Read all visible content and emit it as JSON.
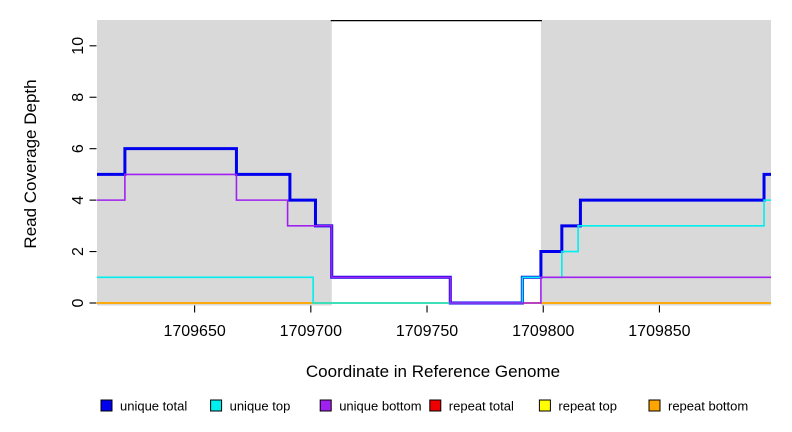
{
  "chart_data": {
    "type": "line",
    "subtype": "step-coverage",
    "title": "",
    "xlabel": "Coordinate in Reference Genome",
    "ylabel": "Read Coverage Depth",
    "x_domain": [
      1709608,
      1709898
    ],
    "y_domain": [
      0,
      11
    ],
    "x_ticks": [
      1709650,
      1709700,
      1709750,
      1709800,
      1709850
    ],
    "y_ticks": [
      0,
      2,
      4,
      6,
      8,
      10
    ],
    "grid": "off",
    "background": {
      "shaded_color": "#d9d9d9",
      "shaded_regions": [
        [
          1709608,
          1709709
        ],
        [
          1709799,
          1709898
        ]
      ],
      "gap_region": [
        1709709,
        1709799
      ],
      "gap_top_border_color": "#000000"
    },
    "series": [
      {
        "name": "repeat total",
        "color": "#ee0000",
        "width": 1.6,
        "steps": [
          [
            1709608,
            0
          ]
        ]
      },
      {
        "name": "repeat top",
        "color": "#ffff00",
        "width": 1.6,
        "steps": [
          [
            1709608,
            0
          ]
        ]
      },
      {
        "name": "repeat bottom",
        "color": "#ffa500",
        "width": 1.6,
        "steps": [
          [
            1709608,
            0
          ]
        ]
      },
      {
        "name": "unique total",
        "color": "#0000ee",
        "width": 3,
        "steps": [
          [
            1709608,
            5
          ],
          [
            1709620,
            6
          ],
          [
            1709668,
            5
          ],
          [
            1709691,
            4
          ],
          [
            1709702,
            3
          ],
          [
            1709709,
            1
          ],
          [
            1709760,
            0
          ],
          [
            1709791,
            1
          ],
          [
            1709799,
            2
          ],
          [
            1709808,
            3
          ],
          [
            1709816,
            4
          ],
          [
            1709895,
            5
          ]
        ]
      },
      {
        "name": "unique top",
        "color": "#00eeee",
        "width": 1.6,
        "steps": [
          [
            1709608,
            1
          ],
          [
            1709701,
            0
          ],
          [
            1709791,
            1
          ],
          [
            1709808,
            2
          ],
          [
            1709815,
            3
          ],
          [
            1709895,
            4
          ]
        ]
      },
      {
        "name": "unique bottom",
        "color": "#a020f0",
        "width": 1.6,
        "steps": [
          [
            1709608,
            4
          ],
          [
            1709620,
            5
          ],
          [
            1709668,
            4
          ],
          [
            1709690,
            3
          ],
          [
            1709709,
            1
          ],
          [
            1709760,
            0
          ],
          [
            1709799,
            1
          ]
        ]
      }
    ],
    "legend_position": "bottom",
    "legend": [
      {
        "label": "unique total",
        "color": "#0000ee"
      },
      {
        "label": "unique top",
        "color": "#00eeee"
      },
      {
        "label": "unique bottom",
        "color": "#a020f0"
      },
      {
        "label": "repeat total",
        "color": "#ee0000"
      },
      {
        "label": "repeat top",
        "color": "#ffff00"
      },
      {
        "label": "repeat bottom",
        "color": "#ffa500"
      }
    ]
  }
}
